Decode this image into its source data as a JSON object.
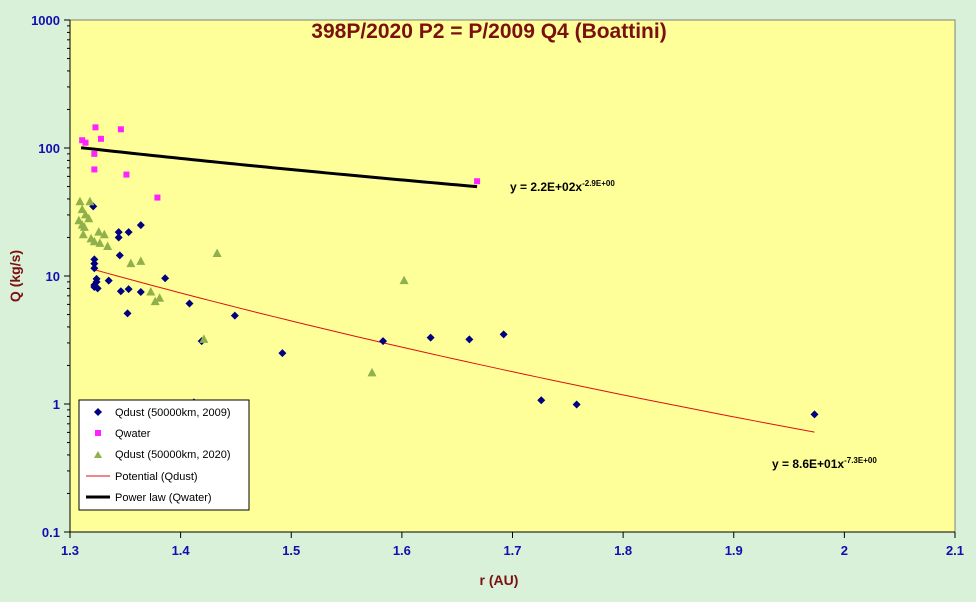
{
  "chart_data": {
    "type": "scatter",
    "title": "398P/2020 P2 = P/2009 Q4 (Boattini)",
    "xlabel": "r (AU)",
    "ylabel": "Q (kg/s)",
    "xlim": [
      1.3,
      2.1
    ],
    "ylim": [
      0.1,
      1000
    ],
    "yscale": "log",
    "xticks": [
      "1.3",
      "1.4",
      "1.5",
      "1.6",
      "1.7",
      "1.8",
      "1.9",
      "2",
      "2.1"
    ],
    "yticks": [
      "0.1",
      "1",
      "10",
      "100",
      "1000"
    ],
    "grid": false,
    "legend_position": "bottom-left",
    "series": [
      {
        "name": "Qdust (50000km, 2009)",
        "marker": "diamond",
        "color": "#000080",
        "points": [
          [
            1.321,
            35
          ],
          [
            1.344,
            22
          ],
          [
            1.344,
            20
          ],
          [
            1.353,
            22
          ],
          [
            1.364,
            25
          ],
          [
            1.322,
            13.5
          ],
          [
            1.322,
            12.5
          ],
          [
            1.322,
            11.5
          ],
          [
            1.345,
            14.5
          ],
          [
            1.386,
            9.6
          ],
          [
            1.324,
            9.5
          ],
          [
            1.324,
            9
          ],
          [
            1.335,
            9.2
          ],
          [
            1.322,
            8.5
          ],
          [
            1.322,
            8.2
          ],
          [
            1.325,
            8
          ],
          [
            1.346,
            7.6
          ],
          [
            1.353,
            7.9
          ],
          [
            1.364,
            7.5
          ],
          [
            1.408,
            6.1
          ],
          [
            1.352,
            5.1
          ],
          [
            1.449,
            4.9
          ],
          [
            1.419,
            3.1
          ],
          [
            1.492,
            2.5
          ],
          [
            1.583,
            3.1
          ],
          [
            1.626,
            3.3
          ],
          [
            1.661,
            3.2
          ],
          [
            1.692,
            3.5
          ],
          [
            1.412,
            1.03
          ],
          [
            1.726,
            1.07
          ],
          [
            1.758,
            0.99
          ],
          [
            1.973,
            0.83
          ]
        ]
      },
      {
        "name": "Qwater",
        "marker": "square",
        "color": "#ff22ff",
        "points": [
          [
            1.311,
            115
          ],
          [
            1.314,
            110
          ],
          [
            1.323,
            145
          ],
          [
            1.328,
            118
          ],
          [
            1.346,
            140
          ],
          [
            1.322,
            90
          ],
          [
            1.322,
            68
          ],
          [
            1.351,
            62
          ],
          [
            1.379,
            41
          ],
          [
            1.668,
            55
          ]
        ]
      },
      {
        "name": "Qdust (50000km, 2020)",
        "marker": "triangle",
        "color": "#8fb04a",
        "points": [
          [
            1.309,
            38
          ],
          [
            1.318,
            38
          ],
          [
            1.311,
            33
          ],
          [
            1.314,
            30
          ],
          [
            1.317,
            28
          ],
          [
            1.308,
            27
          ],
          [
            1.311,
            25
          ],
          [
            1.313,
            24
          ],
          [
            1.326,
            22
          ],
          [
            1.331,
            21
          ],
          [
            1.312,
            21
          ],
          [
            1.319,
            19.5
          ],
          [
            1.322,
            18.5
          ],
          [
            1.327,
            18
          ],
          [
            1.334,
            17
          ],
          [
            1.355,
            12.5
          ],
          [
            1.364,
            13
          ],
          [
            1.433,
            15
          ],
          [
            1.602,
            9.2
          ],
          [
            1.373,
            7.5
          ],
          [
            1.377,
            6.3
          ],
          [
            1.381,
            6.7
          ],
          [
            1.421,
            3.2
          ],
          [
            1.573,
            1.75
          ]
        ]
      }
    ],
    "trendlines": [
      {
        "name": "Potential (Qdust)",
        "color": "#dd1111",
        "coef": 86,
        "exponent": -7.3,
        "x_range": [
          1.321,
          1.973
        ],
        "equation": {
          "base": "y = 8.6E+01x",
          "sup": "-7.3E+00"
        }
      },
      {
        "name": "Power law (Qwater)",
        "color": "#000000",
        "coef": 220,
        "exponent": -2.9,
        "x_range": [
          1.31,
          1.668
        ],
        "equation": {
          "base": "y = 2.2E+02x",
          "sup": "-2.9E+00"
        }
      }
    ],
    "colors": {
      "background": "#d9f0d9",
      "plot_area": "#ffff99"
    }
  }
}
